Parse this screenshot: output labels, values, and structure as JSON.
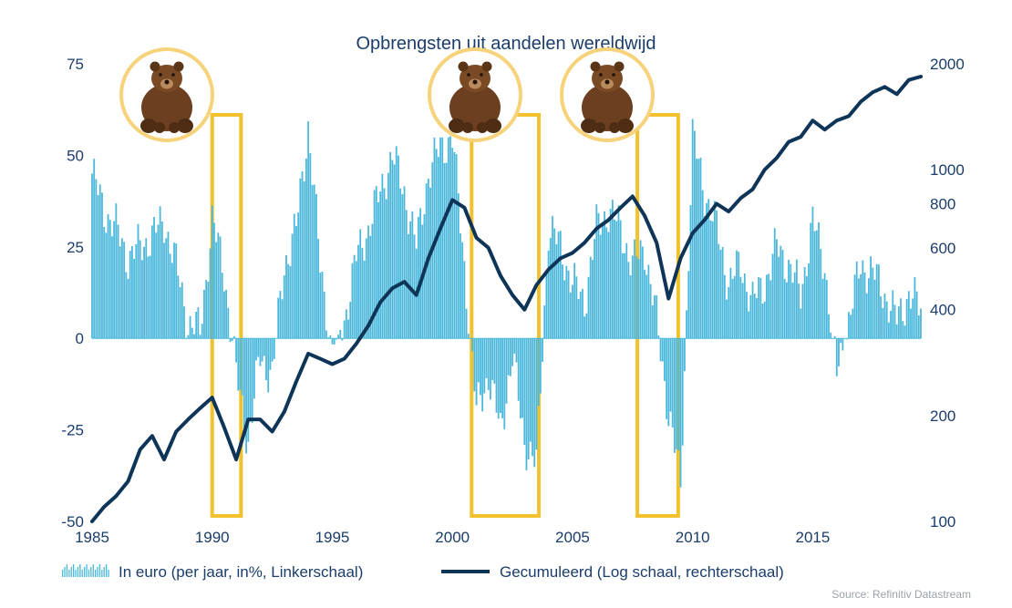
{
  "chart_data": {
    "type": "bar+line",
    "title": "Opbrengsten uit aandelen wereldwijd",
    "source": "Source: Refinitiv Datastream",
    "left_axis": {
      "min": -50,
      "max": 75,
      "ticks": [
        -50,
        -25,
        0,
        25,
        50,
        75
      ]
    },
    "right_axis": {
      "scale": "log",
      "min": 100,
      "max": 2000,
      "ticks": [
        100,
        200,
        400,
        600,
        800,
        1000,
        2000
      ]
    },
    "x_axis": {
      "min": 1985,
      "max": 2019.5,
      "ticks": [
        1985,
        1990,
        1995,
        2000,
        2005,
        2010,
        2015
      ]
    },
    "legend": [
      {
        "label": "In euro (per jaar, in%, Linkerschaal)",
        "kind": "bars"
      },
      {
        "label": "Gecumuleerd (Log schaal, rechterschaal)",
        "kind": "line"
      }
    ],
    "colors": {
      "bars": "#4bb8db",
      "line": "#0e3458",
      "highlight": "#f2c12e",
      "bear_circle": "#f6d27a",
      "text": "#1b3d6b"
    },
    "bear_market_periods": [
      {
        "start": 1990.0,
        "end": 1991.2
      },
      {
        "start": 2000.8,
        "end": 2003.6
      },
      {
        "start": 2007.7,
        "end": 2009.4
      }
    ],
    "series": [
      {
        "name": "In euro (per jaar, in%, Linkerschaal)",
        "type": "bar",
        "x": [
          1985,
          1985.5,
          1986,
          1986.5,
          1987,
          1987.5,
          1988,
          1988.5,
          1989,
          1989.5,
          1990,
          1990.5,
          1991,
          1991.5,
          1992,
          1992.5,
          1993,
          1993.5,
          1994,
          1994.5,
          1995,
          1995.5,
          1996,
          1996.5,
          1997,
          1997.5,
          1998,
          1998.5,
          1999,
          1999.5,
          2000,
          2000.5,
          2001,
          2001.5,
          2002,
          2002.5,
          2003,
          2003.5,
          2004,
          2004.5,
          2005,
          2005.5,
          2006,
          2006.5,
          2007,
          2007.5,
          2008,
          2008.5,
          2009,
          2009.5,
          2010,
          2010.5,
          2011,
          2011.5,
          2012,
          2012.5,
          2013,
          2013.5,
          2014,
          2014.5,
          2015,
          2015.5,
          2016,
          2016.5,
          2017,
          2017.5,
          2018,
          2018.5,
          2019,
          2019.5
        ],
        "values": [
          45,
          35,
          30,
          22,
          25,
          28,
          32,
          20,
          4,
          2,
          32,
          18,
          -10,
          -28,
          -5,
          -10,
          20,
          30,
          58,
          20,
          -3,
          5,
          22,
          30,
          40,
          50,
          40,
          25,
          45,
          52,
          55,
          20,
          -20,
          -10,
          -25,
          -5,
          -28,
          -35,
          30,
          25,
          15,
          10,
          30,
          35,
          30,
          20,
          25,
          5,
          -20,
          -40,
          55,
          40,
          30,
          15,
          20,
          10,
          15,
          25,
          20,
          12,
          32,
          20,
          -10,
          5,
          20,
          18,
          12,
          5,
          12,
          8
        ]
      },
      {
        "name": "Gecumuleerd (Log schaal, rechterschaal)",
        "type": "line",
        "x": [
          1985,
          1985.5,
          1986,
          1986.5,
          1987,
          1987.5,
          1988,
          1988.5,
          1989,
          1989.5,
          1990,
          1990.5,
          1991,
          1991.5,
          1992,
          1992.5,
          1993,
          1993.5,
          1994,
          1994.5,
          1995,
          1995.5,
          1996,
          1996.5,
          1997,
          1997.5,
          1998,
          1998.5,
          1999,
          1999.5,
          2000,
          2000.5,
          2001,
          2001.5,
          2002,
          2002.5,
          2003,
          2003.5,
          2004,
          2004.5,
          2005,
          2005.5,
          2006,
          2006.5,
          2007,
          2007.5,
          2008,
          2008.5,
          2009,
          2009.5,
          2010,
          2010.5,
          2011,
          2011.5,
          2012,
          2012.5,
          2013,
          2013.5,
          2014,
          2014.5,
          2015,
          2015.5,
          2016,
          2016.5,
          2017,
          2017.5,
          2018,
          2018.5,
          2019,
          2019.5
        ],
        "values": [
          100,
          110,
          118,
          130,
          160,
          175,
          150,
          180,
          195,
          210,
          225,
          185,
          150,
          195,
          195,
          180,
          205,
          250,
          300,
          290,
          280,
          290,
          320,
          360,
          420,
          460,
          480,
          440,
          560,
          680,
          820,
          780,
          640,
          600,
          500,
          440,
          400,
          470,
          520,
          560,
          580,
          620,
          680,
          720,
          780,
          840,
          740,
          620,
          430,
          560,
          660,
          720,
          800,
          760,
          830,
          880,
          1000,
          1080,
          1200,
          1240,
          1380,
          1300,
          1380,
          1420,
          1560,
          1660,
          1720,
          1640,
          1800,
          1840
        ]
      }
    ]
  }
}
